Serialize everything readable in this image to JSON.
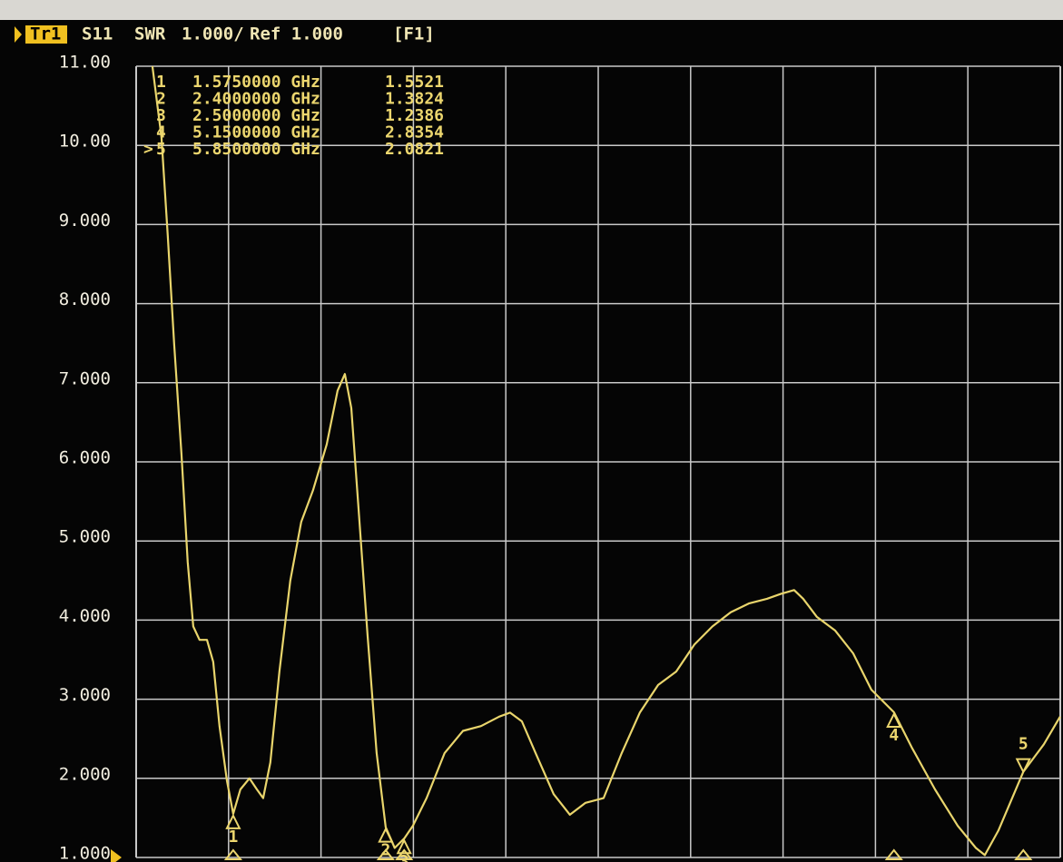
{
  "chart_data": {
    "type": "line",
    "header": {
      "trace": "Tr1",
      "parameter": "S11",
      "format": "SWR",
      "scale": "1.000/",
      "reference": "Ref 1.000",
      "channel": "[F1]"
    },
    "xlim": [
      1.05,
      6.05
    ],
    "xgrid": [
      1.55,
      2.05,
      2.55,
      3.05,
      3.55,
      4.05,
      4.55,
      5.05,
      5.55
    ],
    "ylim": [
      1,
      11
    ],
    "yticks": [
      {
        "value": 1,
        "label": "1.000"
      },
      {
        "value": 2,
        "label": "2.000"
      },
      {
        "value": 3,
        "label": "3.000"
      },
      {
        "value": 4,
        "label": "4.000"
      },
      {
        "value": 5,
        "label": "5.000"
      },
      {
        "value": 6,
        "label": "6.000"
      },
      {
        "value": 7,
        "label": "7.000"
      },
      {
        "value": 8,
        "label": "8.000"
      },
      {
        "value": 9,
        "label": "9.000"
      },
      {
        "value": 10,
        "label": "10.00"
      },
      {
        "value": 11,
        "label": "11.00"
      }
    ],
    "grid": true,
    "series": [
      {
        "name": "S11",
        "color": "#e9d56c",
        "x": [
          1.138,
          1.187,
          1.221,
          1.256,
          1.295,
          1.329,
          1.359,
          1.393,
          1.433,
          1.467,
          1.501,
          1.541,
          1.575,
          1.614,
          1.663,
          1.703,
          1.737,
          1.776,
          1.825,
          1.884,
          1.943,
          2.007,
          2.081,
          2.14,
          2.179,
          2.214,
          2.253,
          2.302,
          2.351,
          2.4,
          2.449,
          2.5,
          2.547,
          2.621,
          2.719,
          2.818,
          2.916,
          3.014,
          3.073,
          3.137,
          3.211,
          3.309,
          3.397,
          3.481,
          3.579,
          3.677,
          3.775,
          3.874,
          3.972,
          4.07,
          4.168,
          4.267,
          4.365,
          4.463,
          4.537,
          4.61,
          4.659,
          4.733,
          4.831,
          4.929,
          5.028,
          5.15,
          5.249,
          5.372,
          5.495,
          5.593,
          5.642,
          5.715,
          5.85,
          5.961,
          6.049
        ],
        "values": [
          11,
          10.1,
          8.86,
          7.48,
          6.1,
          4.73,
          3.92,
          3.75,
          3.75,
          3.47,
          2.66,
          1.97,
          1.5521,
          1.86,
          2.0,
          1.86,
          1.75,
          2.2,
          3.35,
          4.5,
          5.24,
          5.64,
          6.22,
          6.9,
          7.11,
          6.68,
          5.42,
          3.81,
          2.32,
          1.3824,
          1.12,
          1.2386,
          1.4,
          1.75,
          2.32,
          2.6,
          2.66,
          2.78,
          2.83,
          2.72,
          2.32,
          1.8,
          1.54,
          1.69,
          1.75,
          2.32,
          2.83,
          3.18,
          3.35,
          3.69,
          3.92,
          4.1,
          4.21,
          4.27,
          4.33,
          4.38,
          4.27,
          4.04,
          3.87,
          3.58,
          3.12,
          2.8354,
          2.38,
          1.86,
          1.4,
          1.12,
          1.03,
          1.34,
          2.0821,
          2.43,
          2.78
        ]
      }
    ],
    "markers": {
      "labels": [
        "1",
        "2",
        "3",
        "4",
        "5"
      ],
      "frequency_labels": [
        "1.5750000 GHz",
        "2.4000000 GHz",
        "2.5000000 GHz",
        "5.1500000 GHz",
        "5.8500000 GHz"
      ],
      "frequencies": [
        1.575,
        2.4,
        2.5,
        5.15,
        5.85
      ],
      "values": [
        1.5521,
        1.3824,
        1.2386,
        2.8354,
        2.0821
      ],
      "active": 4
    }
  }
}
